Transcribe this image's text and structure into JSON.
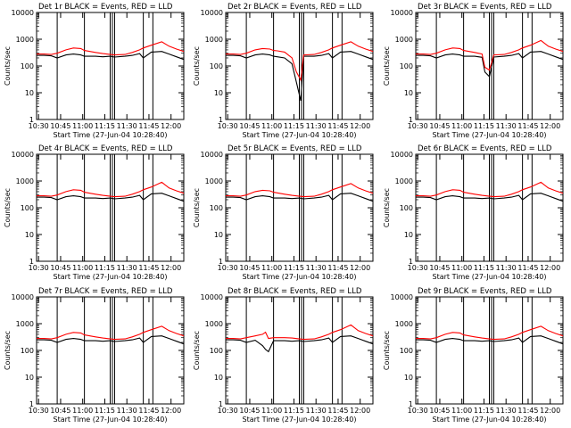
{
  "figure": {
    "x_tick_labels": [
      "10:30",
      "10:45",
      "11:00",
      "11:15",
      "11:30",
      "11:45",
      "12:00"
    ],
    "x_tick_minutes": [
      0,
      15,
      30,
      45,
      60,
      75,
      90
    ],
    "y_tick_labels": [
      "1",
      "10",
      "100",
      "1000",
      "10000"
    ],
    "y_tick_values": [
      1,
      10,
      100,
      1000,
      10000
    ],
    "series_colors": {
      "events": "#000000",
      "lld": "#ff0000"
    }
  },
  "chart_data": [
    {
      "type": "line",
      "title": "Det 1r BLACK = Events, RED = LLD",
      "xlabel": "Start Time (27-Jun-04 10:28:40)",
      "ylabel": "Counts/sec",
      "x_unit": "minutes after 10:28:40",
      "xlim": [
        0,
        100
      ],
      "ylim": [
        1,
        10000
      ],
      "yscale": "log",
      "vlines": [
        14,
        32.5,
        50,
        51.5,
        53,
        72.5,
        79
      ],
      "series": [
        {
          "name": "Events",
          "color": "#000000",
          "x": [
            0,
            5,
            10,
            14,
            20,
            25,
            30,
            32.5,
            40,
            45,
            50,
            53,
            60,
            65,
            70,
            72.5,
            78,
            85,
            90,
            95,
            100
          ],
          "y": [
            250,
            250,
            240,
            200,
            260,
            280,
            260,
            230,
            230,
            220,
            230,
            215,
            230,
            250,
            290,
            200,
            330,
            350,
            280,
            220,
            175
          ]
        },
        {
          "name": "LLD",
          "color": "#ff0000",
          "x": [
            0,
            5,
            10,
            14,
            20,
            25,
            30,
            32.5,
            40,
            45,
            50,
            53,
            60,
            65,
            70,
            72.5,
            78,
            85,
            90,
            95,
            100
          ],
          "y": [
            280,
            280,
            270,
            300,
            400,
            470,
            450,
            380,
            320,
            290,
            270,
            260,
            270,
            320,
            400,
            470,
            600,
            800,
            550,
            430,
            350
          ]
        }
      ]
    },
    {
      "type": "line",
      "title": "Det 2r BLACK = Events, RED = LLD",
      "xlabel": "Start Time (27-Jun-04 10:28:40)",
      "ylabel": "Counts/sec",
      "x_unit": "minutes after 10:28:40",
      "xlim": [
        0,
        100
      ],
      "ylim": [
        1,
        10000
      ],
      "yscale": "log",
      "vlines": [
        14,
        32.5,
        50,
        51.5,
        53,
        72.5,
        79
      ],
      "series": [
        {
          "name": "Events",
          "color": "#000000",
          "x": [
            0,
            5,
            10,
            14,
            20,
            25,
            30,
            32.5,
            35,
            40,
            45,
            48,
            51,
            53,
            60,
            65,
            70,
            72.5,
            78,
            85,
            90,
            95,
            100
          ],
          "y": [
            250,
            250,
            240,
            200,
            260,
            280,
            260,
            230,
            220,
            200,
            120,
            25,
            5,
            230,
            230,
            250,
            290,
            200,
            330,
            350,
            280,
            220,
            175
          ]
        },
        {
          "name": "LLD",
          "color": "#ff0000",
          "x": [
            0,
            5,
            10,
            14,
            20,
            25,
            30,
            32.5,
            35,
            40,
            45,
            48,
            51,
            53,
            60,
            65,
            70,
            72.5,
            78,
            85,
            90,
            95,
            100
          ],
          "y": [
            280,
            280,
            270,
            300,
            400,
            450,
            430,
            380,
            370,
            330,
            200,
            60,
            30,
            260,
            270,
            320,
            400,
            470,
            600,
            800,
            550,
            430,
            350
          ]
        }
      ]
    },
    {
      "type": "line",
      "title": "Det 3r BLACK = Events, RED = LLD",
      "xlabel": "Start Time (27-Jun-04 10:28:40)",
      "ylabel": "Counts/sec",
      "x_unit": "minutes after 10:28:40",
      "xlim": [
        0,
        100
      ],
      "ylim": [
        1,
        10000
      ],
      "yscale": "log",
      "vlines": [
        14,
        32.5,
        50,
        51.5,
        53,
        72.5,
        79
      ],
      "series": [
        {
          "name": "Events",
          "color": "#000000",
          "x": [
            0,
            5,
            10,
            14,
            20,
            25,
            30,
            32.5,
            40,
            45,
            47,
            50,
            53,
            60,
            65,
            70,
            72.5,
            78,
            85,
            90,
            95,
            100
          ],
          "y": [
            250,
            250,
            240,
            200,
            260,
            280,
            260,
            230,
            230,
            210,
            60,
            40,
            215,
            230,
            250,
            290,
            200,
            330,
            350,
            280,
            220,
            175
          ]
        },
        {
          "name": "LLD",
          "color": "#ff0000",
          "x": [
            0,
            5,
            10,
            14,
            20,
            25,
            30,
            32.5,
            40,
            45,
            47,
            50,
            53,
            60,
            65,
            70,
            72.5,
            78,
            85,
            90,
            95,
            100
          ],
          "y": [
            280,
            280,
            270,
            300,
            400,
            470,
            450,
            380,
            320,
            280,
            90,
            70,
            260,
            270,
            320,
            400,
            470,
            600,
            900,
            550,
            430,
            350
          ]
        }
      ]
    },
    {
      "type": "line",
      "title": "Det 4r BLACK = Events, RED = LLD",
      "xlabel": "Start Time (27-Jun-04 10:28:40)",
      "ylabel": "Counts/sec",
      "x_unit": "minutes after 10:28:40",
      "xlim": [
        0,
        100
      ],
      "ylim": [
        1,
        10000
      ],
      "yscale": "log",
      "vlines": [
        14,
        32.5,
        50,
        51.5,
        53,
        72.5,
        79
      ],
      "series": [
        {
          "name": "Events",
          "color": "#000000",
          "x": [
            0,
            5,
            10,
            14,
            20,
            25,
            30,
            32.5,
            40,
            45,
            50,
            53,
            60,
            65,
            70,
            72.5,
            78,
            85,
            90,
            95,
            100
          ],
          "y": [
            250,
            250,
            240,
            200,
            260,
            280,
            260,
            230,
            230,
            220,
            230,
            215,
            230,
            250,
            290,
            200,
            330,
            350,
            280,
            220,
            175
          ]
        },
        {
          "name": "LLD",
          "color": "#ff0000",
          "x": [
            0,
            5,
            10,
            14,
            20,
            25,
            30,
            32.5,
            40,
            45,
            50,
            53,
            60,
            65,
            70,
            72.5,
            78,
            85,
            90,
            95,
            100
          ],
          "y": [
            280,
            280,
            270,
            300,
            400,
            470,
            450,
            380,
            320,
            290,
            270,
            260,
            270,
            320,
            400,
            470,
            600,
            900,
            550,
            430,
            350
          ]
        }
      ]
    },
    {
      "type": "line",
      "title": "Det 5r BLACK = Events, RED = LLD",
      "xlabel": "Start Time (27-Jun-04 10:28:40)",
      "ylabel": "Counts/sec",
      "x_unit": "minutes after 10:28:40",
      "xlim": [
        0,
        100
      ],
      "ylim": [
        1,
        10000
      ],
      "yscale": "log",
      "vlines": [
        14,
        32.5,
        50,
        51.5,
        53,
        72.5,
        79
      ],
      "series": [
        {
          "name": "Events",
          "color": "#000000",
          "x": [
            0,
            5,
            10,
            14,
            20,
            25,
            30,
            32.5,
            40,
            45,
            50,
            53,
            60,
            65,
            70,
            72.5,
            78,
            85,
            90,
            95,
            100
          ],
          "y": [
            250,
            250,
            240,
            200,
            260,
            280,
            260,
            230,
            230,
            220,
            230,
            215,
            230,
            250,
            290,
            200,
            330,
            350,
            280,
            220,
            175
          ]
        },
        {
          "name": "LLD",
          "color": "#ff0000",
          "x": [
            0,
            5,
            10,
            14,
            20,
            25,
            30,
            32.5,
            40,
            45,
            50,
            53,
            60,
            65,
            70,
            72.5,
            78,
            85,
            90,
            95,
            100
          ],
          "y": [
            280,
            280,
            270,
            300,
            400,
            450,
            430,
            380,
            320,
            290,
            270,
            260,
            270,
            320,
            400,
            470,
            600,
            800,
            550,
            430,
            350
          ]
        }
      ]
    },
    {
      "type": "line",
      "title": "Det 6r BLACK = Events, RED = LLD",
      "xlabel": "Start Time (27-Jun-04 10:28:40)",
      "ylabel": "Counts/sec",
      "x_unit": "minutes after 10:28:40",
      "xlim": [
        0,
        100
      ],
      "ylim": [
        1,
        10000
      ],
      "yscale": "log",
      "vlines": [
        14,
        32.5,
        50,
        51.5,
        53,
        72.5,
        79
      ],
      "series": [
        {
          "name": "Events",
          "color": "#000000",
          "x": [
            0,
            5,
            10,
            14,
            20,
            25,
            30,
            32.5,
            40,
            45,
            50,
            53,
            60,
            65,
            70,
            72.5,
            78,
            85,
            90,
            95,
            100
          ],
          "y": [
            250,
            250,
            240,
            200,
            260,
            280,
            260,
            230,
            230,
            220,
            230,
            215,
            230,
            250,
            290,
            200,
            330,
            350,
            280,
            220,
            175
          ]
        },
        {
          "name": "LLD",
          "color": "#ff0000",
          "x": [
            0,
            5,
            10,
            14,
            20,
            25,
            30,
            32.5,
            40,
            45,
            50,
            53,
            60,
            65,
            70,
            72.5,
            78,
            85,
            90,
            95,
            100
          ],
          "y": [
            280,
            280,
            270,
            300,
            400,
            470,
            450,
            380,
            320,
            290,
            270,
            260,
            270,
            320,
            400,
            470,
            600,
            900,
            550,
            430,
            350
          ]
        }
      ]
    },
    {
      "type": "line",
      "title": "Det 7r BLACK = Events, RED = LLD",
      "xlabel": "Start Time (27-Jun-04 10:28:40)",
      "ylabel": "Counts/sec",
      "x_unit": "minutes after 10:28:40",
      "xlim": [
        0,
        100
      ],
      "ylim": [
        1,
        10000
      ],
      "yscale": "log",
      "vlines": [
        14,
        32.5,
        50,
        51.5,
        53,
        72.5,
        79
      ],
      "series": [
        {
          "name": "Events",
          "color": "#000000",
          "x": [
            0,
            5,
            10,
            14,
            20,
            25,
            30,
            32.5,
            40,
            45,
            50,
            53,
            60,
            65,
            70,
            72.5,
            78,
            85,
            90,
            95,
            100
          ],
          "y": [
            250,
            250,
            240,
            200,
            260,
            280,
            260,
            230,
            230,
            220,
            230,
            215,
            230,
            250,
            290,
            200,
            330,
            350,
            280,
            220,
            175
          ]
        },
        {
          "name": "LLD",
          "color": "#ff0000",
          "x": [
            0,
            5,
            10,
            14,
            20,
            25,
            30,
            32.5,
            40,
            45,
            50,
            53,
            60,
            65,
            70,
            72.5,
            78,
            85,
            90,
            95,
            100
          ],
          "y": [
            280,
            280,
            270,
            300,
            400,
            470,
            450,
            380,
            320,
            290,
            270,
            260,
            270,
            320,
            400,
            470,
            600,
            800,
            550,
            430,
            350
          ]
        }
      ]
    },
    {
      "type": "line",
      "title": "Det 8r BLACK = Events, RED = LLD",
      "xlabel": "Start Time (27-Jun-04 10:28:40)",
      "ylabel": "Counts/sec",
      "x_unit": "minutes after 10:28:40",
      "xlim": [
        0,
        100
      ],
      "ylim": [
        1,
        10000
      ],
      "yscale": "log",
      "vlines": [
        14,
        32.5,
        50,
        51.5,
        53,
        72.5,
        79
      ],
      "series": [
        {
          "name": "Events",
          "color": "#000000",
          "x": [
            0,
            5,
            10,
            14,
            20,
            25,
            27,
            29,
            32.5,
            40,
            45,
            50,
            53,
            60,
            65,
            70,
            72.5,
            78,
            85,
            90,
            95,
            100
          ],
          "y": [
            250,
            250,
            240,
            200,
            240,
            150,
            110,
            90,
            230,
            230,
            220,
            230,
            215,
            230,
            250,
            290,
            200,
            330,
            350,
            280,
            220,
            175
          ]
        },
        {
          "name": "LLD",
          "color": "#ff0000",
          "x": [
            0,
            5,
            10,
            14,
            20,
            25,
            27,
            29,
            32.5,
            40,
            45,
            50,
            53,
            60,
            65,
            70,
            72.5,
            78,
            85,
            90,
            95,
            100
          ],
          "y": [
            280,
            280,
            270,
            300,
            350,
            400,
            480,
            280,
            300,
            300,
            290,
            270,
            260,
            270,
            320,
            400,
            470,
            600,
            900,
            550,
            430,
            350
          ]
        }
      ]
    },
    {
      "type": "line",
      "title": "Det 9r BLACK = Events, RED = LLD",
      "xlabel": "Start Time (27-Jun-04 10:28:40)",
      "ylabel": "Counts/sec",
      "x_unit": "minutes after 10:28:40",
      "xlim": [
        0,
        100
      ],
      "ylim": [
        1,
        10000
      ],
      "yscale": "log",
      "vlines": [
        14,
        32.5,
        50,
        51.5,
        53,
        72.5,
        79
      ],
      "series": [
        {
          "name": "Events",
          "color": "#000000",
          "x": [
            0,
            5,
            10,
            14,
            20,
            25,
            30,
            32.5,
            40,
            45,
            50,
            53,
            60,
            65,
            70,
            72.5,
            78,
            85,
            90,
            95,
            100
          ],
          "y": [
            250,
            250,
            240,
            200,
            260,
            280,
            260,
            230,
            230,
            220,
            230,
            215,
            230,
            250,
            290,
            200,
            330,
            350,
            280,
            220,
            175
          ]
        },
        {
          "name": "LLD",
          "color": "#ff0000",
          "x": [
            0,
            5,
            10,
            14,
            20,
            25,
            30,
            32.5,
            40,
            45,
            50,
            53,
            60,
            65,
            70,
            72.5,
            78,
            85,
            90,
            95,
            100
          ],
          "y": [
            280,
            280,
            270,
            300,
            400,
            470,
            450,
            380,
            320,
            290,
            270,
            260,
            270,
            320,
            400,
            470,
            600,
            800,
            550,
            430,
            350
          ]
        }
      ]
    }
  ]
}
